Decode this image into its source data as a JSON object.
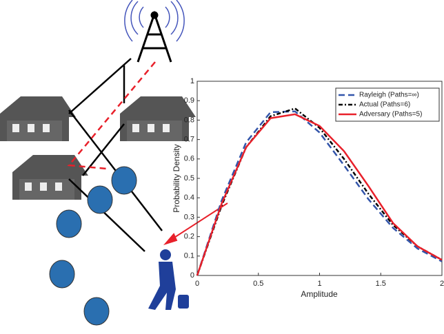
{
  "chart_data": {
    "type": "line",
    "xlabel": "Amplitude",
    "ylabel": "Probability Density",
    "x": [
      0,
      0.2,
      0.4,
      0.6,
      0.8,
      1.0,
      1.2,
      1.4,
      1.6,
      1.8,
      2.0
    ],
    "series": [
      {
        "name": "Rayleigh (Paths=∞)",
        "color": "#3355aa",
        "dash": "9,5",
        "values": [
          0,
          0.386,
          0.685,
          0.841,
          0.845,
          0.736,
          0.567,
          0.392,
          0.245,
          0.139,
          0.072
        ]
      },
      {
        "name": "Actual  (Paths=6)",
        "color": "#000000",
        "dash": "6,3,2,3",
        "values": [
          0,
          0.36,
          0.66,
          0.82,
          0.86,
          0.76,
          0.6,
          0.42,
          0.26,
          0.15,
          0.08
        ]
      },
      {
        "name": "Adversary (Paths=5)",
        "color": "#e8202a",
        "dash": "",
        "values": [
          0,
          0.37,
          0.66,
          0.81,
          0.83,
          0.77,
          0.64,
          0.46,
          0.27,
          0.15,
          0.08
        ]
      }
    ],
    "xlim": [
      0,
      2
    ],
    "xticks": [
      0,
      0.5,
      1,
      1.5,
      2
    ],
    "ylim": [
      0,
      1
    ],
    "yticks": [
      0,
      0.1,
      0.2,
      0.3,
      0.4,
      0.5,
      0.6,
      0.7,
      0.8,
      0.9,
      1
    ],
    "legend": "top-right",
    "grid": false
  }
}
